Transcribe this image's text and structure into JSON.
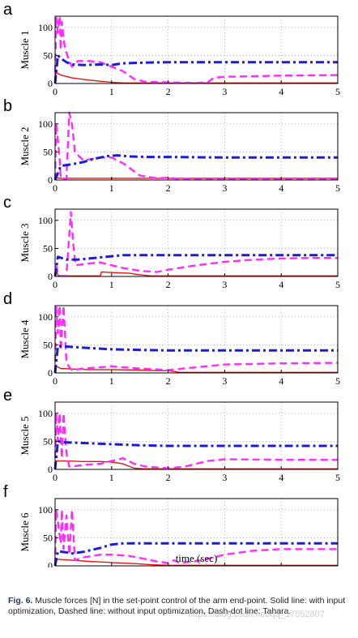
{
  "figure": {
    "xlabel": "time (sec)",
    "caption_label": "Fig. 6.",
    "caption_text": "Muscle forces [N] in the set-point control of the arm end-point. Solid line: with input optimization, Dashed line: without input optimization, Dash-dot line: Tahara.",
    "watermark": "https://blog.csdn.net/qq_17052807"
  },
  "colors": {
    "solid": "#e8140f",
    "dashed": "#ff2bff",
    "dashdot": "#1b1bdb"
  },
  "chart_data": [
    {
      "type": "line",
      "panel": "a",
      "ylabel": "Muscle 1",
      "xlim": [
        0,
        5
      ],
      "ylim": [
        0,
        120
      ],
      "xticks": [
        0,
        1,
        2,
        3,
        4,
        5
      ],
      "yticks": [
        0,
        50,
        100
      ],
      "grid": true,
      "series": [
        {
          "style": "solid",
          "x": [
            0,
            0.02,
            0.1,
            0.3,
            0.6,
            1.0,
            1.2,
            1.5,
            2,
            5
          ],
          "y": [
            0,
            20,
            15,
            10,
            6,
            2,
            1,
            1,
            1,
            1
          ]
        },
        {
          "style": "dashed",
          "x": [
            0,
            0.02,
            0.05,
            0.08,
            0.1,
            0.12,
            0.15,
            0.18,
            0.2,
            0.25,
            0.3,
            0.4,
            0.6,
            0.8,
            1.0,
            1.2,
            1.4,
            1.6,
            2.0,
            2.5,
            2.7,
            2.8,
            3.0,
            4.0,
            5.0
          ],
          "y": [
            0,
            120,
            90,
            120,
            60,
            110,
            80,
            60,
            55,
            40,
            30,
            40,
            40,
            38,
            30,
            22,
            8,
            3,
            2,
            1,
            2,
            10,
            12,
            14,
            15
          ]
        },
        {
          "style": "dashdot",
          "x": [
            0,
            0.05,
            0.1,
            0.2,
            0.3,
            0.5,
            0.8,
            1.0,
            1.2,
            1.5,
            2,
            3,
            4,
            5
          ],
          "y": [
            0,
            50,
            45,
            38,
            34,
            33,
            34,
            33,
            36,
            37,
            38,
            38,
            38,
            38
          ]
        }
      ]
    },
    {
      "type": "line",
      "panel": "b",
      "ylabel": "Muscle 2",
      "xlim": [
        0,
        5
      ],
      "ylim": [
        0,
        120
      ],
      "xticks": [
        0,
        1,
        2,
        3,
        4,
        5
      ],
      "yticks": [
        0,
        50,
        100
      ],
      "grid": true,
      "series": [
        {
          "style": "solid",
          "x": [
            0,
            0.02,
            0.1,
            5
          ],
          "y": [
            0,
            4,
            3,
            3
          ]
        },
        {
          "style": "dashed",
          "x": [
            0,
            0.02,
            0.08,
            0.1,
            0.2,
            0.25,
            0.3,
            0.35,
            0.5,
            0.8,
            1.0,
            1.2,
            1.5,
            1.8,
            2.0,
            2.2,
            2.5,
            3,
            4,
            5
          ],
          "y": [
            0,
            100,
            40,
            2,
            2,
            120,
            100,
            50,
            35,
            40,
            40,
            30,
            8,
            3,
            4,
            2,
            1,
            1,
            1,
            1
          ]
        },
        {
          "style": "dashdot",
          "x": [
            0,
            0.1,
            0.3,
            0.5,
            0.7,
            0.9,
            1.1,
            1.3,
            1.6,
            2,
            3,
            4,
            5
          ],
          "y": [
            0,
            25,
            28,
            32,
            38,
            42,
            44,
            42,
            41,
            41,
            40,
            40,
            40
          ]
        }
      ]
    },
    {
      "type": "line",
      "panel": "c",
      "ylabel": "Muscle 3",
      "xlim": [
        0,
        5
      ],
      "ylim": [
        0,
        120
      ],
      "xticks": [
        0,
        1,
        2,
        3,
        4,
        5
      ],
      "yticks": [
        0,
        50,
        100
      ],
      "grid": true,
      "series": [
        {
          "style": "solid",
          "x": [
            0,
            0.02,
            0.05,
            0.1,
            0.8,
            0.82,
            1.0,
            1.3,
            1.5,
            1.7,
            2,
            5
          ],
          "y": [
            0,
            12,
            2,
            1,
            1,
            8,
            7,
            6,
            3,
            1,
            1,
            1
          ]
        },
        {
          "style": "dashed",
          "x": [
            0,
            0.02,
            0.05,
            0.1,
            0.2,
            0.28,
            0.32,
            0.36,
            0.5,
            0.8,
            1.0,
            1.2,
            1.5,
            1.8,
            2.0,
            2.5,
            3,
            3.5,
            4,
            4.5,
            5
          ],
          "y": [
            0,
            20,
            5,
            1,
            1,
            115,
            60,
            20,
            22,
            25,
            20,
            15,
            10,
            8,
            12,
            20,
            26,
            30,
            32,
            33,
            33
          ]
        },
        {
          "style": "dashdot",
          "x": [
            0,
            0.05,
            0.2,
            0.4,
            0.6,
            0.8,
            1.0,
            1.2,
            1.5,
            2,
            3,
            4,
            5
          ],
          "y": [
            0,
            35,
            30,
            30,
            32,
            34,
            36,
            38,
            38,
            38,
            38,
            38,
            38
          ]
        }
      ]
    },
    {
      "type": "line",
      "panel": "d",
      "ylabel": "Muscle 4",
      "xlim": [
        0,
        5
      ],
      "ylim": [
        0,
        120
      ],
      "xticks": [
        0,
        1,
        2,
        3,
        4,
        5
      ],
      "yticks": [
        0,
        50,
        100
      ],
      "grid": true,
      "series": [
        {
          "style": "solid",
          "x": [
            0,
            0.02,
            0.1,
            0.3,
            0.6,
            1.0,
            1.5,
            1.8,
            2.0,
            2.2,
            2.5,
            5
          ],
          "y": [
            0,
            12,
            8,
            7,
            6,
            6,
            5,
            4,
            4,
            1,
            1,
            1
          ]
        },
        {
          "style": "dashed",
          "x": [
            0,
            0.02,
            0.05,
            0.08,
            0.1,
            0.15,
            0.18,
            0.2,
            0.25,
            0.3,
            0.5,
            0.8,
            1.0,
            1.2,
            1.5,
            2.0,
            2.5,
            3,
            4,
            5
          ],
          "y": [
            0,
            120,
            70,
            120,
            40,
            120,
            60,
            20,
            10,
            5,
            8,
            10,
            12,
            10,
            8,
            5,
            10,
            15,
            17,
            18
          ]
        },
        {
          "style": "dashdot",
          "x": [
            0,
            0.05,
            0.2,
            0.5,
            1.0,
            1.5,
            2,
            2.5,
            3,
            4,
            5
          ],
          "y": [
            0,
            48,
            47,
            45,
            42,
            41,
            40,
            40,
            40,
            40,
            40
          ]
        }
      ]
    },
    {
      "type": "line",
      "panel": "e",
      "ylabel": "Muscle 5",
      "xlim": [
        0,
        5
      ],
      "ylim": [
        0,
        120
      ],
      "xticks": [
        0,
        1,
        2,
        3,
        4,
        5
      ],
      "yticks": [
        0,
        50,
        100
      ],
      "grid": true,
      "series": [
        {
          "style": "solid",
          "x": [
            0,
            0.02,
            0.2,
            0.5,
            0.8,
            1.0,
            1.2,
            1.3,
            1.4,
            1.6,
            2,
            5
          ],
          "y": [
            0,
            15,
            15,
            14,
            14,
            13,
            10,
            6,
            2,
            1,
            1,
            1
          ]
        },
        {
          "style": "dashed",
          "x": [
            0,
            0.02,
            0.05,
            0.08,
            0.12,
            0.15,
            0.2,
            0.25,
            0.3,
            0.5,
            0.8,
            1.0,
            1.2,
            1.4,
            1.6,
            2.0,
            2.3,
            2.7,
            3,
            4,
            5
          ],
          "y": [
            0,
            100,
            50,
            100,
            20,
            100,
            30,
            5,
            5,
            8,
            10,
            15,
            20,
            10,
            5,
            2,
            5,
            15,
            18,
            17,
            17
          ]
        },
        {
          "style": "dashdot",
          "x": [
            0,
            0.05,
            0.2,
            0.5,
            1.0,
            1.5,
            2,
            3,
            4,
            5
          ],
          "y": [
            0,
            50,
            48,
            47,
            45,
            43,
            42,
            42,
            42,
            42
          ]
        }
      ]
    },
    {
      "type": "line",
      "panel": "f",
      "ylabel": "Muscle 6",
      "xlim": [
        0,
        5
      ],
      "ylim": [
        0,
        120
      ],
      "xticks": [
        0,
        1,
        2,
        3,
        4,
        5
      ],
      "yticks": [
        0,
        50,
        100
      ],
      "grid": true,
      "series": [
        {
          "style": "solid",
          "x": [
            0,
            0.02,
            0.3,
            0.6,
            1.0,
            1.4,
            1.7,
            2,
            5
          ],
          "y": [
            0,
            12,
            10,
            8,
            6,
            4,
            2,
            1,
            1
          ]
        },
        {
          "style": "dashed",
          "x": [
            0,
            0.02,
            0.1,
            0.12,
            0.15,
            0.2,
            0.25,
            0.3,
            0.35,
            0.5,
            0.8,
            1.0,
            1.3,
            1.6,
            1.8,
            2.0,
            2.1,
            2.2,
            2.6,
            3.0,
            3.5,
            4.0,
            4.5,
            5.0
          ],
          "y": [
            0,
            100,
            40,
            100,
            30,
            90,
            20,
            100,
            10,
            15,
            20,
            20,
            18,
            12,
            8,
            5,
            10,
            5,
            10,
            20,
            27,
            30,
            30,
            30
          ]
        },
        {
          "style": "dashdot",
          "x": [
            0,
            0.05,
            0.2,
            0.3,
            0.5,
            0.8,
            1.0,
            1.2,
            1.5,
            2,
            3,
            4,
            5
          ],
          "y": [
            0,
            26,
            24,
            22,
            25,
            32,
            38,
            40,
            40,
            40,
            40,
            40,
            40
          ]
        }
      ]
    }
  ]
}
